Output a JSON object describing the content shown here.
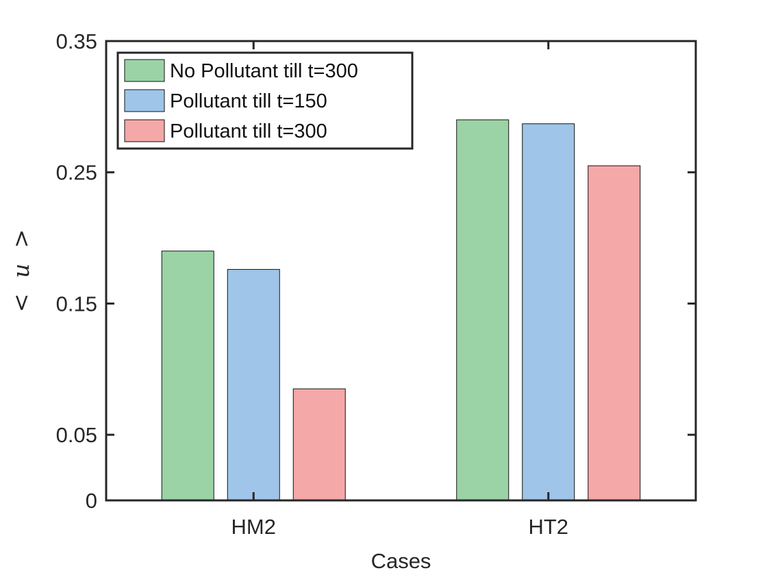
{
  "chart_data": {
    "type": "bar",
    "categories": [
      "HM2",
      "HT2"
    ],
    "series": [
      {
        "name": "No Pollutant till t=300",
        "color": "#9bd3a6",
        "values": [
          0.19,
          0.29
        ]
      },
      {
        "name": "Pollutant till t=150",
        "color": "#9fc5e8",
        "values": [
          0.176,
          0.287
        ]
      },
      {
        "name": "Pollutant till t=300",
        "color": "#f4a8a8",
        "values": [
          0.085,
          0.255
        ]
      }
    ],
    "title": "",
    "xlabel": "Cases",
    "ylabel_parts": [
      "<",
      "u",
      ">"
    ],
    "ylim": [
      0,
      0.35
    ],
    "yticks": [
      0,
      0.05,
      0.15,
      0.25,
      0.35
    ],
    "ytick_labels": [
      "0",
      "0.05",
      "0.15",
      "0.25",
      "0.35"
    ],
    "grid": false,
    "legend_position": "top-left"
  }
}
